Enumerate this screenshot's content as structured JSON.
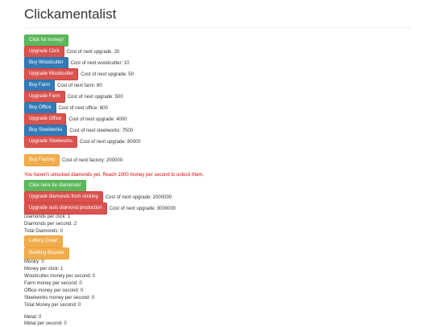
{
  "title": "Clickamentalist",
  "buttons": {
    "click_money": "Click for money!",
    "upgrade_click": "Upgrade Click",
    "buy_woodcutter": "Buy Woodcutter",
    "upgrade_woodcutter": "Upgrade Woodcutter",
    "buy_farm": "Buy Farm",
    "upgrade_farm": "Upgrade Farm",
    "buy_office": "Buy Office",
    "upgrade_office": "Upgrade Office",
    "buy_steelworks": "Buy Steelworks",
    "upgrade_steelworks": "Upgrade Steelworks",
    "buy_factory": "Buy Factory",
    "click_diamonds": "Click here for diamonds!",
    "upgrade_diamonds_clicking": "Upgrade diamonds from clicking",
    "upgrade_auto_diamond": "Upgrade auto diamond production",
    "lottery_draw": "Lottery Draw!",
    "building_booster": "Building Booster"
  },
  "costs": {
    "upgrade_click": "Cost of next upgrade: 20",
    "woodcutter": "Cost of next woodcutter: 10",
    "upgrade_woodcutter": "Cost of next upgrade: 50",
    "farm": "Cost of next farm: 80",
    "upgrade_farm": "Cost of next upgrade: 500",
    "office": "Cost of next office: 600",
    "upgrade_office": "Cost of next upgrade: 4000",
    "steelworks": "Cost of next steelworks: 7500",
    "upgrade_steelworks": "Cost of next upgrade: 80000",
    "factory": "Cost of next factory: 200000",
    "upgrade_diamonds_clicking": "Cost of next upgrade: 2000000",
    "upgrade_auto_diamond": "Cost of next upgrade: 3000000"
  },
  "diamond_warning": "You haven't unlocked diamonds yet. Reach 1000 money per second to unlock them.",
  "diamond_stats": {
    "per_click": "Diamonds per click: 1",
    "per_second": "Diamonds per second: 2",
    "total": "Total Diamonds: 0"
  },
  "money_stats": {
    "money": "Money: 0",
    "per_click": "Money per click: 1",
    "woodcutter": "Woodcutter money per second: 0",
    "farm": "Farm money per second: 0",
    "office": "Office money per second: 0",
    "steelworks": "Steelworks money per second: 0",
    "total": "Total Money per second: 0"
  },
  "metal_stats": {
    "metal": "Metal: 0",
    "per_second": "Metal per second: 0"
  },
  "colors": {
    "success": "#5cb85c",
    "danger": "#d9534f",
    "primary": "#337ab7",
    "warning": "#f0ad4e",
    "warning_text": "#d9000c"
  }
}
